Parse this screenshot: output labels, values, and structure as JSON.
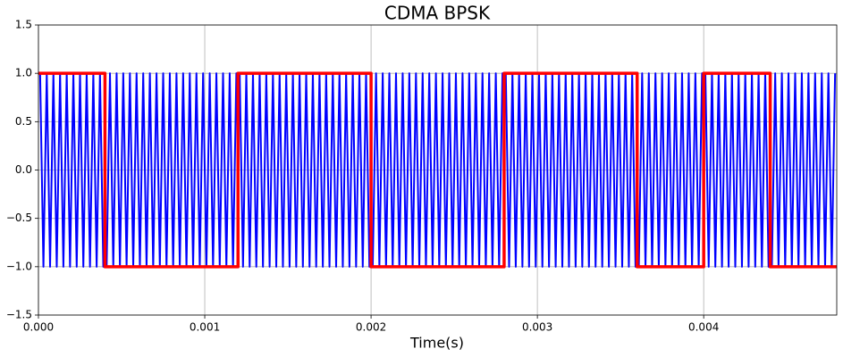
{
  "chart_data": {
    "type": "line",
    "title": "CDMA BPSK",
    "xlabel": "Time(s)",
    "xlim": [
      0,
      0.0048
    ],
    "xticks": [
      {
        "value": 0,
        "label": "0.000"
      },
      {
        "value": 0.001,
        "label": "0.001"
      },
      {
        "value": 0.002,
        "label": "0.002"
      },
      {
        "value": 0.003,
        "label": "0.003"
      },
      {
        "value": 0.004,
        "label": "0.004"
      }
    ],
    "ylim": [
      -1.5,
      1.5
    ],
    "yticks": [
      {
        "value": -1.5,
        "label": "−1.5"
      },
      {
        "value": -1,
        "label": "−1.0"
      },
      {
        "value": -0.5,
        "label": "−0.5"
      },
      {
        "value": 0,
        "label": "0.0"
      },
      {
        "value": 0.5,
        "label": "0.5"
      },
      {
        "value": 1,
        "label": "1.0"
      },
      {
        "value": 1.5,
        "label": "1.5"
      }
    ],
    "grid": true,
    "series": [
      {
        "color": "#0000ff",
        "x": [
          1e-05,
          3e-05,
          5e-05,
          7e-05,
          9e-05,
          0.00011,
          0.00013,
          0.00015,
          0.00017,
          0.00019,
          0.00021,
          0.00023,
          0.00025,
          0.00027,
          0.00029,
          0.00031,
          0.00033,
          0.00035,
          0.00037,
          0.00039,
          0.00041,
          0.00043,
          0.00045,
          0.00047,
          0.00049,
          0.00051,
          0.00053,
          0.00055,
          0.00057,
          0.00059,
          0.00061,
          0.00063,
          0.00065,
          0.00067,
          0.00069,
          0.00071,
          0.00073,
          0.00075,
          0.00077,
          0.00079,
          0.00081,
          0.00083,
          0.00085,
          0.00087,
          0.00089,
          0.00091,
          0.00093,
          0.00095,
          0.00097,
          0.00099,
          0.00101,
          0.00103,
          0.00105,
          0.00107,
          0.00109,
          0.00111,
          0.00113,
          0.00115,
          0.00117,
          0.00119,
          0.00121,
          0.00123,
          0.00125,
          0.00127,
          0.00129,
          0.00131,
          0.00133,
          0.00135,
          0.00137,
          0.00139,
          0.00141,
          0.00143,
          0.00145,
          0.00147,
          0.00149,
          0.00151,
          0.00153,
          0.00155,
          0.00157,
          0.00159,
          0.00161,
          0.00163,
          0.00165,
          0.00167,
          0.00169,
          0.00171,
          0.00173,
          0.00175,
          0.00177,
          0.00179,
          0.00181,
          0.00183,
          0.00185,
          0.00187,
          0.00189,
          0.00191,
          0.00193,
          0.00195,
          0.00197,
          0.00199,
          0.00201,
          0.00203,
          0.00205,
          0.00207,
          0.00209,
          0.00211,
          0.00213,
          0.00215,
          0.00217,
          0.00219,
          0.00221,
          0.00223,
          0.00225,
          0.00227,
          0.00229,
          0.00231,
          0.00233,
          0.00235,
          0.00237,
          0.00239,
          0.00241,
          0.00243,
          0.00245,
          0.00247,
          0.00249,
          0.00251,
          0.00253,
          0.00255,
          0.00257,
          0.00259,
          0.00261,
          0.00263,
          0.00265,
          0.00267,
          0.00269,
          0.00271,
          0.00273,
          0.00275,
          0.00277,
          0.00279,
          0.00281,
          0.00283,
          0.00285,
          0.00287,
          0.00289,
          0.00291,
          0.00293,
          0.00295,
          0.00297,
          0.00299,
          0.00301,
          0.00303,
          0.00305,
          0.00307,
          0.00309,
          0.00311,
          0.00313,
          0.00315,
          0.00317,
          0.00319,
          0.00321,
          0.00323,
          0.00325,
          0.00327,
          0.00329,
          0.00331,
          0.00333,
          0.00335,
          0.00337,
          0.00339,
          0.00341,
          0.00343,
          0.00345,
          0.00347,
          0.00349,
          0.00351,
          0.00353,
          0.00355,
          0.00357,
          0.00359,
          0.00361,
          0.00363,
          0.00365,
          0.00367,
          0.00369,
          0.00371,
          0.00373,
          0.00375,
          0.00377,
          0.00379,
          0.00381,
          0.00383,
          0.00385,
          0.00387,
          0.00389,
          0.00391,
          0.00393,
          0.00395,
          0.00397,
          0.00399,
          0.00401,
          0.00403,
          0.00405,
          0.00407,
          0.00409,
          0.00411,
          0.00413,
          0.00415,
          0.00417,
          0.00419,
          0.00421,
          0.00423,
          0.00425,
          0.00427,
          0.00429,
          0.00431,
          0.00433,
          0.00435,
          0.00437,
          0.00439,
          0.00441,
          0.00443,
          0.00445,
          0.00447,
          0.00449,
          0.00451,
          0.00453,
          0.00455,
          0.00457,
          0.00459,
          0.00461,
          0.00463,
          0.00465,
          0.00467,
          0.00469,
          0.00471,
          0.00473,
          0.00475,
          0.00477,
          0.00479
        ],
        "values": [
          1,
          -1,
          1,
          -1,
          1,
          -1,
          1,
          -1,
          1,
          -1,
          1,
          -1,
          1,
          -1,
          1,
          -1,
          1,
          -1,
          1,
          -1,
          -1,
          1,
          -1,
          1,
          -1,
          1,
          -1,
          1,
          -1,
          1,
          -1,
          1,
          -1,
          1,
          -1,
          1,
          -1,
          1,
          -1,
          1,
          -1,
          1,
          -1,
          1,
          -1,
          1,
          -1,
          1,
          -1,
          1,
          -1,
          1,
          -1,
          1,
          -1,
          1,
          -1,
          1,
          -1,
          1,
          1,
          -1,
          1,
          -1,
          1,
          -1,
          1,
          -1,
          1,
          -1,
          1,
          -1,
          1,
          -1,
          1,
          -1,
          1,
          -1,
          1,
          -1,
          1,
          -1,
          1,
          -1,
          1,
          -1,
          1,
          -1,
          1,
          -1,
          1,
          -1,
          1,
          -1,
          1,
          -1,
          1,
          -1,
          1,
          -1,
          -1,
          1,
          -1,
          1,
          -1,
          1,
          -1,
          1,
          -1,
          1,
          -1,
          1,
          -1,
          1,
          -1,
          1,
          -1,
          1,
          -1,
          1,
          -1,
          1,
          -1,
          1,
          -1,
          1,
          -1,
          1,
          -1,
          1,
          -1,
          1,
          -1,
          1,
          -1,
          1,
          -1,
          1,
          -1,
          1,
          1,
          -1,
          1,
          -1,
          1,
          -1,
          1,
          -1,
          1,
          -1,
          1,
          -1,
          1,
          -1,
          1,
          -1,
          1,
          -1,
          1,
          -1,
          1,
          -1,
          1,
          -1,
          1,
          -1,
          1,
          -1,
          1,
          -1,
          1,
          -1,
          1,
          -1,
          1,
          -1,
          1,
          -1,
          1,
          -1,
          -1,
          1,
          -1,
          1,
          -1,
          1,
          -1,
          1,
          -1,
          1,
          -1,
          1,
          -1,
          1,
          -1,
          1,
          -1,
          1,
          -1,
          1,
          1,
          -1,
          1,
          -1,
          1,
          -1,
          1,
          -1,
          1,
          -1,
          1,
          -1,
          1,
          -1,
          1,
          -1,
          1,
          -1,
          1,
          -1,
          -1,
          1,
          -1,
          1,
          -1,
          1,
          -1,
          1,
          -1,
          1,
          -1,
          1,
          -1,
          1,
          -1,
          1,
          -1,
          1,
          -1,
          1
        ]
      },
      {
        "color": "#ff0000",
        "x": [
          0,
          0.0004,
          0.0004,
          0.0012,
          0.0012,
          0.002,
          0.002,
          0.0028,
          0.0028,
          0.0036,
          0.0036,
          0.004,
          0.004,
          0.0044,
          0.0044,
          0.0048
        ],
        "values": [
          1,
          1,
          -1,
          -1,
          1,
          1,
          -1,
          -1,
          1,
          1,
          -1,
          -1,
          1,
          1,
          -1,
          -1
        ]
      }
    ]
  }
}
